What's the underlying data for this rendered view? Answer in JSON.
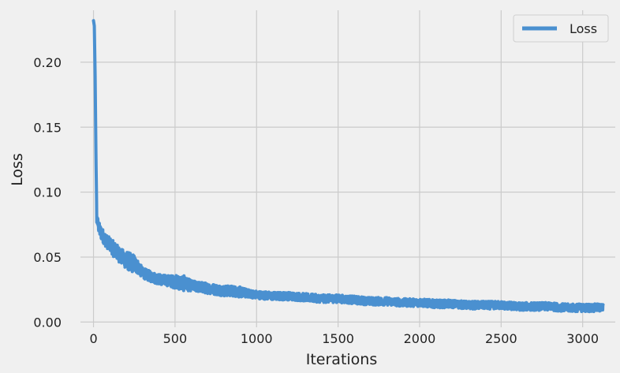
{
  "chart_data": {
    "type": "line",
    "title": "",
    "xlabel": "Iterations",
    "ylabel": "Loss",
    "xlim": [
      -80,
      3200
    ],
    "ylim": [
      -0.004,
      0.24
    ],
    "xticks": [
      0,
      500,
      1000,
      1500,
      2000,
      2500,
      3000
    ],
    "yticks": [
      0.0,
      0.05,
      0.1,
      0.15,
      0.2
    ],
    "xtick_labels": [
      "0",
      "500",
      "1000",
      "1500",
      "2000",
      "2500",
      "3000"
    ],
    "ytick_labels": [
      "0.00",
      "0.05",
      "0.10",
      "0.15",
      "0.20"
    ],
    "grid": true,
    "legend": "top-right",
    "colors": {
      "background": "#f0f0f0",
      "grid": "#cbcbcb",
      "line": "#4a90d0"
    },
    "series": [
      {
        "name": "Loss",
        "x": [
          0,
          5,
          10,
          15,
          20,
          30,
          40,
          60,
          80,
          100,
          125,
          150,
          175,
          200,
          225,
          250,
          275,
          300,
          350,
          400,
          450,
          500,
          550,
          600,
          650,
          700,
          750,
          800,
          850,
          900,
          950,
          1000,
          1100,
          1200,
          1300,
          1400,
          1500,
          1600,
          1700,
          1800,
          1900,
          2000,
          2100,
          2200,
          2300,
          2400,
          2500,
          2600,
          2700,
          2800,
          2900,
          3000,
          3100,
          3125
        ],
        "values": [
          0.232,
          0.228,
          0.19,
          0.13,
          0.08,
          0.074,
          0.07,
          0.066,
          0.062,
          0.06,
          0.056,
          0.053,
          0.05,
          0.048,
          0.046,
          0.045,
          0.042,
          0.038,
          0.035,
          0.033,
          0.032,
          0.031,
          0.03,
          0.028,
          0.027,
          0.026,
          0.025,
          0.024,
          0.024,
          0.023,
          0.022,
          0.021,
          0.02,
          0.02,
          0.019,
          0.018,
          0.018,
          0.017,
          0.016,
          0.016,
          0.015,
          0.015,
          0.014,
          0.014,
          0.013,
          0.013,
          0.013,
          0.012,
          0.012,
          0.012,
          0.011,
          0.011,
          0.011,
          0.011
        ],
        "noise": [
          0,
          0,
          0,
          0,
          0.004,
          0.004,
          0.005,
          0.005,
          0.005,
          0.005,
          0.006,
          0.006,
          0.006,
          0.007,
          0.007,
          0.007,
          0.005,
          0.004,
          0.004,
          0.004,
          0.004,
          0.005,
          0.006,
          0.004,
          0.004,
          0.004,
          0.004,
          0.004,
          0.004,
          0.004,
          0.003,
          0.003,
          0.003,
          0.003,
          0.003,
          0.003,
          0.003,
          0.003,
          0.003,
          0.003,
          0.003,
          0.003,
          0.003,
          0.003,
          0.003,
          0.003,
          0.003,
          0.003,
          0.003,
          0.003,
          0.003,
          0.003,
          0.003,
          0.003
        ]
      }
    ]
  }
}
